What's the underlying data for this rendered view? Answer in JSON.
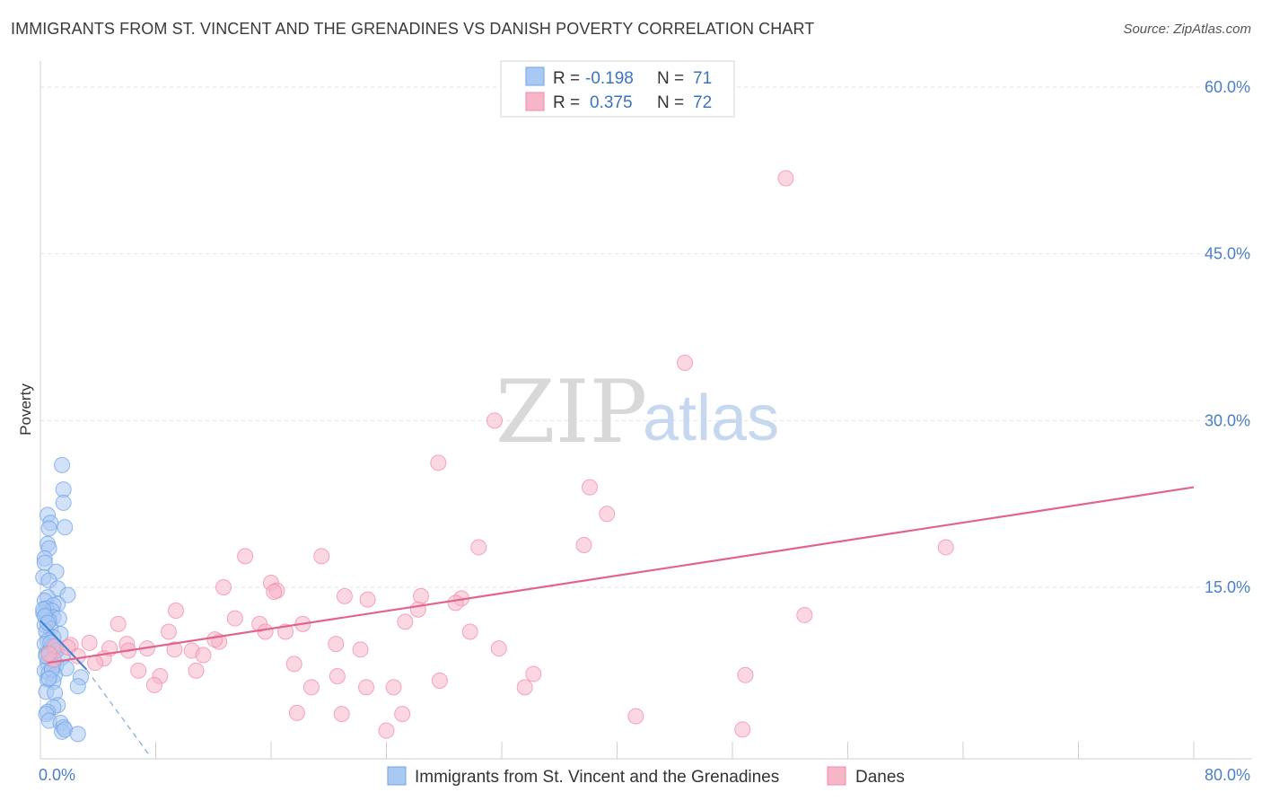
{
  "title": "IMMIGRANTS FROM ST. VINCENT AND THE GRENADINES VS DANISH POVERTY CORRELATION CHART",
  "source": "Source: ZipAtlas.com",
  "watermark": {
    "zip": "ZIP",
    "atlas": "atlas"
  },
  "legend": {
    "rows": [
      {
        "r_label": "R =",
        "r_value": "-0.198",
        "n_label": "N =",
        "n_value": "71",
        "color": "#a9c8f3"
      },
      {
        "r_label": "R =",
        "r_value": "0.375",
        "n_label": "N =",
        "n_value": "72",
        "color": "#f7b6c8"
      }
    ]
  },
  "chart_data": {
    "type": "scatter",
    "title": "IMMIGRANTS FROM ST. VINCENT AND THE GRENADINES VS DANISH POVERTY CORRELATION CHART",
    "xlabel": "",
    "ylabel": "Poverty",
    "xlim": [
      0,
      80
    ],
    "ylim": [
      0,
      64
    ],
    "x_tick_labels": {
      "left": "0.0%",
      "right": "80.0%"
    },
    "y_ticks": [
      {
        "value": 15,
        "label": "15.0%"
      },
      {
        "value": 30,
        "label": "30.0%"
      },
      {
        "value": 45,
        "label": "45.0%"
      },
      {
        "value": 60,
        "label": "60.0%"
      }
    ],
    "grid": true,
    "series": [
      {
        "name": "Immigrants from St. Vincent and the Grenadines",
        "color": "#6fa3e8",
        "fill": "#a9c8f3",
        "points": [
          [
            1.5,
            26.0
          ],
          [
            1.6,
            23.8
          ],
          [
            1.6,
            22.6
          ],
          [
            0.5,
            21.5
          ],
          [
            0.7,
            20.8
          ],
          [
            1.7,
            20.4
          ],
          [
            0.6,
            20.3
          ],
          [
            0.5,
            18.9
          ],
          [
            0.6,
            18.5
          ],
          [
            0.3,
            17.6
          ],
          [
            0.3,
            17.2
          ],
          [
            1.1,
            16.4
          ],
          [
            0.2,
            15.9
          ],
          [
            0.6,
            15.6
          ],
          [
            1.2,
            14.9
          ],
          [
            1.9,
            14.3
          ],
          [
            0.5,
            14.1
          ],
          [
            0.3,
            13.8
          ],
          [
            1.2,
            13.5
          ],
          [
            0.9,
            13.4
          ],
          [
            0.4,
            13.1
          ],
          [
            0.8,
            12.9
          ],
          [
            0.2,
            12.7
          ],
          [
            0.4,
            12.5
          ],
          [
            0.9,
            12.3
          ],
          [
            1.3,
            12.2
          ],
          [
            0.6,
            12.0
          ],
          [
            0.3,
            11.6
          ],
          [
            0.7,
            11.3
          ],
          [
            0.4,
            11.0
          ],
          [
            1.4,
            10.8
          ],
          [
            0.9,
            10.5
          ],
          [
            0.5,
            10.2
          ],
          [
            0.3,
            9.9
          ],
          [
            0.8,
            9.7
          ],
          [
            1.0,
            9.5
          ],
          [
            0.6,
            9.2
          ],
          [
            0.4,
            9.0
          ],
          [
            1.5,
            8.7
          ],
          [
            0.7,
            8.4
          ],
          [
            0.5,
            8.2
          ],
          [
            1.1,
            8.0
          ],
          [
            0.9,
            7.9
          ],
          [
            1.8,
            7.7
          ],
          [
            0.3,
            7.5
          ],
          [
            0.6,
            7.3
          ],
          [
            1.0,
            7.1
          ],
          [
            2.8,
            6.9
          ],
          [
            0.5,
            6.7
          ],
          [
            0.9,
            6.5
          ],
          [
            2.6,
            6.1
          ],
          [
            0.4,
            5.6
          ],
          [
            1.0,
            5.5
          ],
          [
            1.2,
            4.4
          ],
          [
            0.9,
            4.2
          ],
          [
            0.5,
            3.8
          ],
          [
            0.4,
            3.6
          ],
          [
            0.6,
            3.0
          ],
          [
            1.4,
            2.8
          ],
          [
            1.6,
            2.4
          ],
          [
            1.5,
            2.0
          ],
          [
            1.7,
            2.2
          ],
          [
            2.6,
            1.8
          ],
          [
            0.2,
            13.0
          ],
          [
            0.3,
            12.4
          ],
          [
            0.5,
            11.8
          ],
          [
            0.7,
            10.0
          ],
          [
            1.1,
            9.3
          ],
          [
            0.4,
            8.8
          ],
          [
            0.8,
            7.6
          ],
          [
            0.6,
            6.8
          ]
        ]
      },
      {
        "name": "Danes",
        "color": "#f08aa8",
        "fill": "#f7b6c8",
        "points": [
          [
            51.7,
            51.8
          ],
          [
            44.7,
            35.2
          ],
          [
            31.5,
            30.0
          ],
          [
            27.6,
            26.2
          ],
          [
            38.1,
            24.0
          ],
          [
            39.3,
            21.6
          ],
          [
            30.4,
            18.6
          ],
          [
            37.7,
            18.8
          ],
          [
            62.8,
            18.6
          ],
          [
            14.2,
            17.8
          ],
          [
            19.5,
            17.8
          ],
          [
            16.0,
            15.4
          ],
          [
            12.7,
            15.0
          ],
          [
            16.4,
            14.7
          ],
          [
            16.2,
            14.6
          ],
          [
            21.1,
            14.2
          ],
          [
            22.7,
            13.9
          ],
          [
            26.4,
            14.2
          ],
          [
            29.2,
            14.0
          ],
          [
            28.8,
            13.6
          ],
          [
            26.2,
            13.0
          ],
          [
            9.4,
            12.9
          ],
          [
            13.5,
            12.2
          ],
          [
            15.2,
            11.7
          ],
          [
            25.3,
            11.9
          ],
          [
            18.2,
            11.7
          ],
          [
            53.0,
            12.5
          ],
          [
            5.4,
            11.7
          ],
          [
            8.9,
            11.0
          ],
          [
            15.6,
            11.0
          ],
          [
            17.0,
            11.0
          ],
          [
            29.8,
            11.0
          ],
          [
            12.4,
            10.1
          ],
          [
            12.1,
            10.3
          ],
          [
            3.4,
            10.0
          ],
          [
            6.0,
            9.9
          ],
          [
            2.1,
            9.8
          ],
          [
            1.0,
            9.7
          ],
          [
            1.9,
            9.6
          ],
          [
            4.8,
            9.5
          ],
          [
            7.4,
            9.5
          ],
          [
            20.5,
            9.9
          ],
          [
            22.2,
            9.4
          ],
          [
            9.3,
            9.4
          ],
          [
            10.5,
            9.3
          ],
          [
            11.3,
            8.9
          ],
          [
            6.1,
            9.3
          ],
          [
            31.8,
            9.5
          ],
          [
            2.6,
            8.8
          ],
          [
            4.4,
            8.6
          ],
          [
            0.9,
            8.5
          ],
          [
            3.8,
            8.2
          ],
          [
            17.6,
            8.1
          ],
          [
            6.8,
            7.5
          ],
          [
            10.8,
            7.5
          ],
          [
            20.6,
            7.0
          ],
          [
            8.3,
            7.0
          ],
          [
            34.2,
            7.2
          ],
          [
            48.9,
            7.1
          ],
          [
            27.7,
            6.6
          ],
          [
            7.9,
            6.2
          ],
          [
            18.8,
            6.0
          ],
          [
            22.6,
            6.0
          ],
          [
            24.5,
            6.0
          ],
          [
            33.6,
            6.0
          ],
          [
            17.8,
            3.7
          ],
          [
            20.9,
            3.6
          ],
          [
            25.1,
            3.6
          ],
          [
            41.3,
            3.4
          ],
          [
            24.0,
            2.1
          ],
          [
            48.7,
            2.2
          ],
          [
            0.6,
            9.0
          ]
        ]
      }
    ],
    "trend_lines": [
      {
        "series": "Immigrants from St. Vincent and the Grenadines",
        "x_start": 0.0,
        "y_start": 12.0,
        "x_end": 3.2,
        "y_end": 7.6,
        "dash_x_end": 7.5,
        "dash_y_end": 0.0
      },
      {
        "series": "Danes",
        "x_start": 0.5,
        "y_start": 8.2,
        "x_end": 80.0,
        "y_end": 24.0
      }
    ]
  }
}
